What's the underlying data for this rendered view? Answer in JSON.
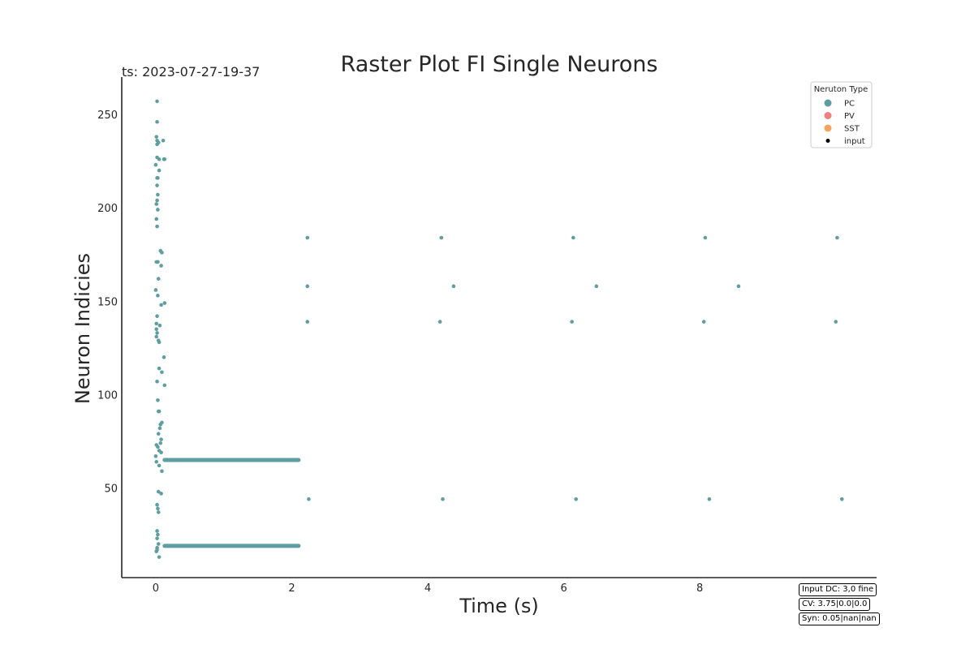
{
  "chart_data": {
    "type": "scatter",
    "title": "Raster Plot FI Single Neurons",
    "timestamp": "ts: 2023-07-27-19-37",
    "xlabel": "Time (s)",
    "ylabel": "Neuron Indicies",
    "xlim": [
      -0.5,
      10.6
    ],
    "ylim": [
      2,
      270
    ],
    "xticks": [
      0,
      2,
      4,
      6,
      8
    ],
    "yticks": [
      50,
      100,
      150,
      200,
      250
    ],
    "grid": false,
    "legend": {
      "title": "Neruton Type",
      "placement": "top-right",
      "entries": [
        {
          "label": "PC",
          "color": "#5f9ea0"
        },
        {
          "label": "PV",
          "color": "#f08080"
        },
        {
          "label": "SST",
          "color": "#f4a460"
        },
        {
          "label": "input",
          "color": "#000000"
        }
      ]
    },
    "series": [
      {
        "name": "PC",
        "color": "#5f9ea0",
        "points": [
          [
            0.02,
            257
          ],
          [
            0.02,
            246
          ],
          [
            0.01,
            238
          ],
          [
            0.02,
            236
          ],
          [
            0.04,
            235
          ],
          [
            0.02,
            234
          ],
          [
            0.11,
            236
          ],
          [
            0.02,
            227
          ],
          [
            0.05,
            226
          ],
          [
            0.12,
            226
          ],
          [
            0.13,
            226
          ],
          [
            0.0,
            223
          ],
          [
            0.05,
            220
          ],
          [
            0.03,
            216
          ],
          [
            0.02,
            216
          ],
          [
            0.02,
            212
          ],
          [
            0.03,
            207
          ],
          [
            0.02,
            204
          ],
          [
            0.01,
            202
          ],
          [
            0.03,
            199
          ],
          [
            0.01,
            194
          ],
          [
            0.02,
            190
          ],
          [
            0.07,
            177
          ],
          [
            0.09,
            176
          ],
          [
            0.03,
            171
          ],
          [
            0.01,
            171
          ],
          [
            0.08,
            169
          ],
          [
            0.04,
            162
          ],
          [
            0.0,
            156
          ],
          [
            0.03,
            153
          ],
          [
            0.13,
            149
          ],
          [
            0.08,
            148
          ],
          [
            0.02,
            142
          ],
          [
            0.01,
            138
          ],
          [
            0.06,
            137
          ],
          [
            0.01,
            135
          ],
          [
            0.02,
            133
          ],
          [
            0.01,
            131
          ],
          [
            0.04,
            129
          ],
          [
            0.05,
            128
          ],
          [
            0.12,
            120
          ],
          [
            0.05,
            114
          ],
          [
            0.09,
            112
          ],
          [
            0.02,
            107
          ],
          [
            0.13,
            105
          ],
          [
            0.03,
            97
          ],
          [
            0.04,
            91
          ],
          [
            0.05,
            91
          ],
          [
            0.09,
            85
          ],
          [
            0.07,
            84
          ],
          [
            0.06,
            82
          ],
          [
            0.04,
            79
          ],
          [
            0.08,
            76
          ],
          [
            0.07,
            74
          ],
          [
            0.01,
            73
          ],
          [
            0.03,
            72
          ],
          [
            0.05,
            70
          ],
          [
            0.08,
            69
          ],
          [
            0.0,
            67
          ],
          [
            0.01,
            64
          ],
          [
            0.05,
            62
          ],
          [
            0.09,
            59
          ],
          [
            0.04,
            48
          ],
          [
            0.08,
            47
          ],
          [
            0.02,
            41
          ],
          [
            0.03,
            39
          ],
          [
            0.04,
            37
          ],
          [
            0.02,
            27
          ],
          [
            0.03,
            25
          ],
          [
            0.02,
            23
          ],
          [
            0.04,
            20
          ],
          [
            0.02,
            18
          ],
          [
            0.02,
            17
          ],
          [
            0.01,
            16
          ],
          [
            0.05,
            13
          ],
          [
            2.23,
            184
          ],
          [
            4.2,
            184
          ],
          [
            6.14,
            184
          ],
          [
            8.08,
            184
          ],
          [
            10.02,
            184
          ],
          [
            2.23,
            158
          ],
          [
            4.38,
            158
          ],
          [
            6.48,
            158
          ],
          [
            8.57,
            158
          ],
          [
            2.23,
            139
          ],
          [
            4.18,
            139
          ],
          [
            6.12,
            139
          ],
          [
            8.06,
            139
          ],
          [
            10.0,
            139
          ],
          [
            2.25,
            44
          ],
          [
            4.22,
            44
          ],
          [
            6.18,
            44
          ],
          [
            8.14,
            44
          ],
          [
            10.09,
            44
          ]
        ]
      }
    ],
    "bands": [
      {
        "neuron": 65,
        "x_start": 0.13,
        "x_end": 2.1,
        "color": "#5f9ea0"
      },
      {
        "neuron": 19,
        "x_start": 0.13,
        "x_end": 2.1,
        "color": "#5f9ea0"
      }
    ],
    "info": [
      "Input DC: 3,0 fine",
      "CV: 3.75|0.0|0.0",
      "Syn: 0.05|nan|nan"
    ]
  }
}
